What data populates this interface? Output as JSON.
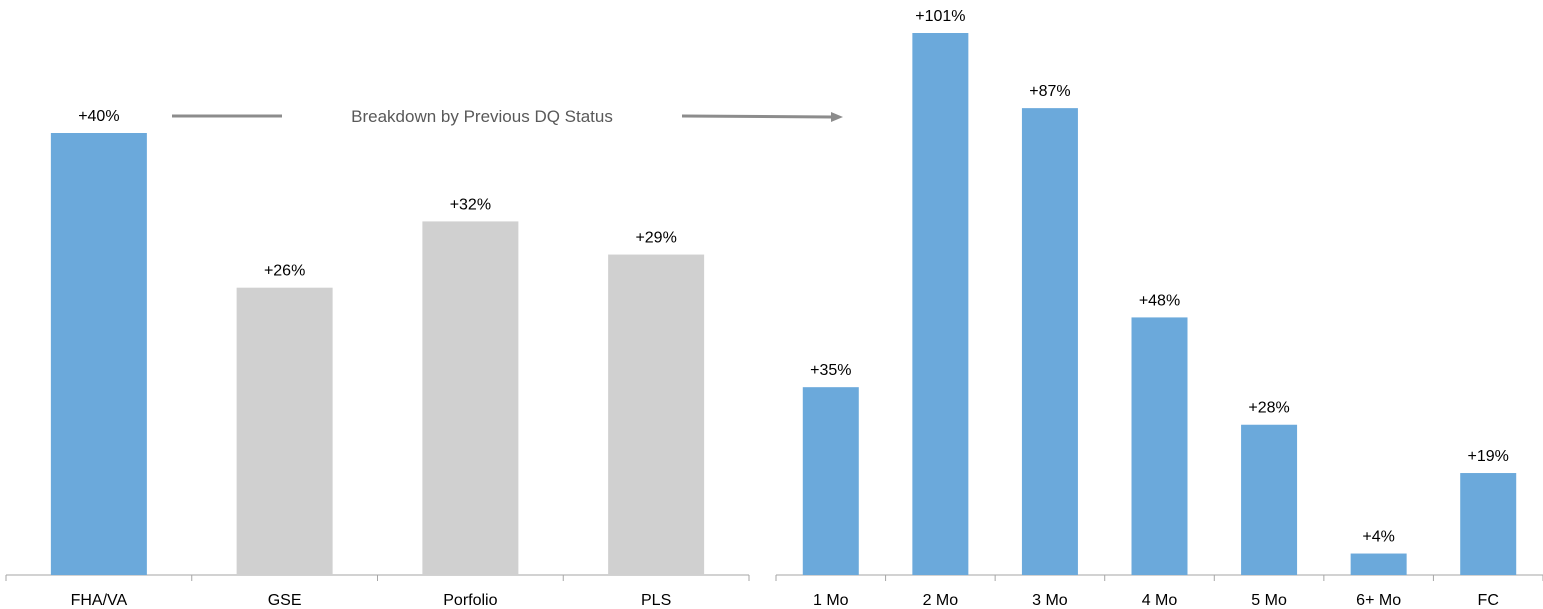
{
  "chart_data": [
    {
      "type": "bar",
      "categories": [
        "FHA/VA",
        "GSE",
        "Porfolio",
        "PLS"
      ],
      "values": [
        40,
        26,
        32,
        29
      ],
      "data_labels": [
        "+40%",
        "+26%",
        "+32%",
        "+29%"
      ],
      "bar_colors": [
        "#6BA9DB",
        "#D0D0D0",
        "#D0D0D0",
        "#D0D0D0"
      ],
      "ylim": [
        0,
        40
      ],
      "title": "",
      "xlabel": "",
      "ylabel": "",
      "grid": false
    },
    {
      "type": "bar",
      "categories": [
        "1 Mo",
        "2 Mo",
        "3 Mo",
        "4 Mo",
        "5 Mo",
        "6+ Mo",
        "FC"
      ],
      "values": [
        35,
        101,
        87,
        48,
        28,
        4,
        19
      ],
      "data_labels": [
        "+35%",
        "+101%",
        "+87%",
        "+48%",
        "+28%",
        "+4%",
        "+19%"
      ],
      "bar_colors": [
        "#6BA9DB",
        "#6BA9DB",
        "#6BA9DB",
        "#6BA9DB",
        "#6BA9DB",
        "#6BA9DB",
        "#6BA9DB"
      ],
      "ylim": [
        0,
        101
      ],
      "title": "",
      "xlabel": "",
      "ylabel": "",
      "grid": false
    }
  ],
  "annotation": {
    "text": "Breakdown by Previous DQ Status",
    "color": "#8C8C8C"
  }
}
